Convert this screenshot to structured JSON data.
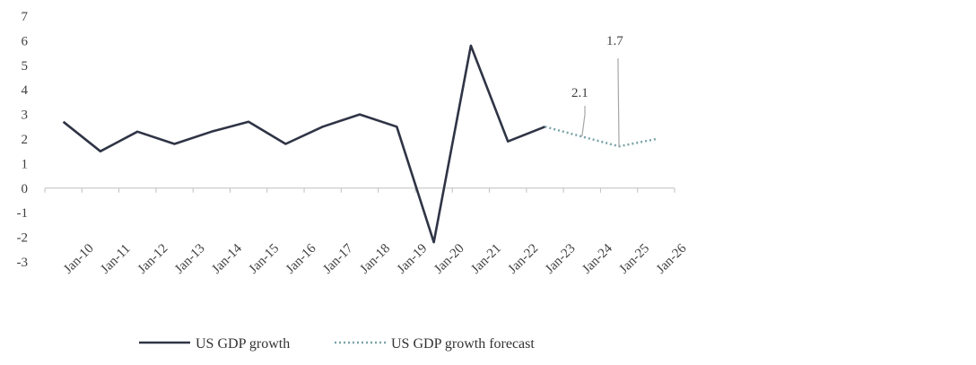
{
  "chart_data": {
    "type": "line",
    "title": "",
    "xlabel": "",
    "ylabel": "",
    "categories": [
      "Jan-10",
      "Jan-11",
      "Jan-12",
      "Jan-13",
      "Jan-14",
      "Jan-15",
      "Jan-16",
      "Jan-17",
      "Jan-18",
      "Jan-19",
      "Jan-20",
      "Jan-21",
      "Jan-22",
      "Jan-23",
      "Jan-24",
      "Jan-25",
      "Jan-26"
    ],
    "ylim": [
      -3,
      7
    ],
    "y_ticks": [
      "7",
      "6",
      "5",
      "4",
      "3",
      "2",
      "1",
      "0",
      "-1",
      "-2",
      "-3"
    ],
    "grid": false,
    "legend_position": "bottom",
    "series": [
      {
        "name": "US GDP growth",
        "style": "solid",
        "color": "#2f3445",
        "x": [
          "Jan-10",
          "Jan-11",
          "Jan-12",
          "Jan-13",
          "Jan-14",
          "Jan-15",
          "Jan-16",
          "Jan-17",
          "Jan-18",
          "Jan-19",
          "Jan-20",
          "Jan-21",
          "Jan-22",
          "Jan-23"
        ],
        "values": [
          2.7,
          1.5,
          2.3,
          1.8,
          2.3,
          2.7,
          1.8,
          2.5,
          3.0,
          2.5,
          -2.2,
          5.8,
          1.9,
          2.5
        ]
      },
      {
        "name": "US GDP growth forecast",
        "style": "dotted",
        "color": "#7aa3a8",
        "x": [
          "Jan-23",
          "Jan-24",
          "Jan-25",
          "Jan-26"
        ],
        "values": [
          2.5,
          2.1,
          1.7,
          2.0
        ]
      }
    ],
    "annotations": [
      {
        "text": "2.1",
        "x": "Jan-24",
        "y": 2.1
      },
      {
        "text": "1.7",
        "x": "Jan-25",
        "y": 1.7
      }
    ]
  }
}
